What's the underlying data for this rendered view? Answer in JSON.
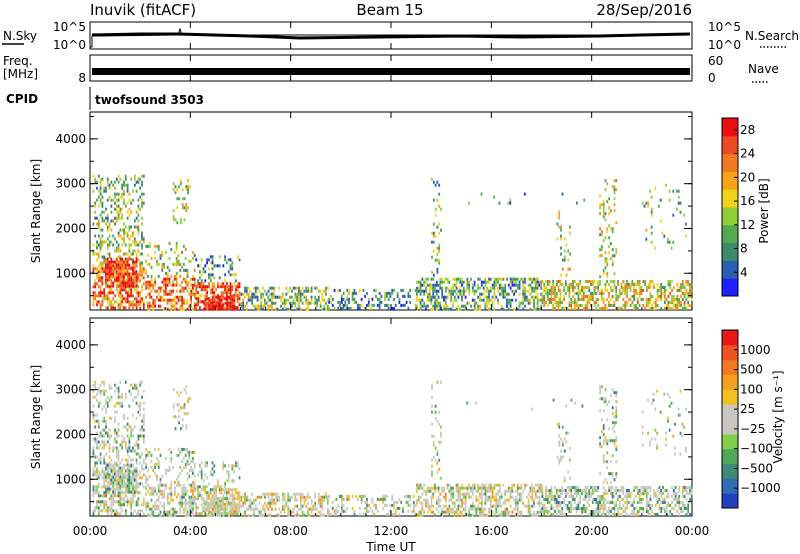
{
  "header": {
    "station": "Inuvik (fitACF)",
    "beam": "Beam 15",
    "date": "28/Sep/2016"
  },
  "top_panels": {
    "nsky_label": "N.Sky",
    "nsky_ticks": [
      "10^5",
      "10^0"
    ],
    "nsearch_label": "N.Search",
    "nsearch_ticks": [
      "10^5",
      "10^0"
    ],
    "freq_label_line1": "Freq.",
    "freq_label_line2": "[MHz]",
    "freq_ticks": [
      "8"
    ],
    "nave_label": "Nave",
    "nave_ticks": [
      "60",
      "0"
    ],
    "cpid_label": "CPID",
    "cpid_value": "twofsound 3503"
  },
  "chart_data": [
    {
      "type": "heatmap",
      "name": "power",
      "ylabel": "Slant Range [km]",
      "xlabel": "",
      "x_range_hours": [
        0,
        24
      ],
      "ylim": [
        180,
        4600
      ],
      "y_ticks": [
        1000,
        2000,
        3000,
        4000
      ],
      "colorbar": {
        "label": "Power [dB]",
        "ticks": [
          "4",
          "8",
          "12",
          "16",
          "20",
          "24",
          "28"
        ],
        "colors": [
          "#1f1fff",
          "#2a5fb0",
          "#3c8a6a",
          "#4faa50",
          "#8fd03a",
          "#f0d21a",
          "#f5a418",
          "#f07a20",
          "#ec4a20",
          "#e81010"
        ]
      }
    },
    {
      "type": "heatmap",
      "name": "velocity",
      "ylabel": "Slant Range [km]",
      "xlabel": "Time UT",
      "x_range_hours": [
        0,
        24
      ],
      "x_ticks": [
        "00:00",
        "04:00",
        "08:00",
        "12:00",
        "16:00",
        "20:00",
        "00:00"
      ],
      "ylim": [
        180,
        4600
      ],
      "y_ticks": [
        1000,
        2000,
        3000,
        4000
      ],
      "colorbar": {
        "label": "Velocity [m s⁻¹]",
        "ticks": [
          "1000",
          "500",
          "100",
          "25",
          "−25",
          "−100",
          "−500",
          "−1000"
        ],
        "colors": [
          "#2040c0",
          "#2f6db0",
          "#3c8a7a",
          "#4fa858",
          "#7fd04a",
          "#c8c8c0",
          "#c8c8c0",
          "#f2c020",
          "#f5a020",
          "#f07a20",
          "#ee5020",
          "#e81818"
        ]
      }
    }
  ]
}
